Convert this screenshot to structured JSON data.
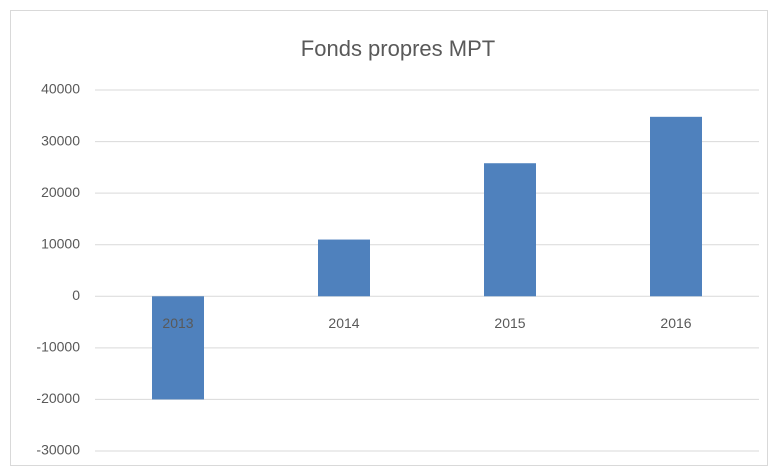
{
  "chart_data": {
    "type": "bar",
    "title": "Fonds propres MPT",
    "categories": [
      "2013",
      "2014",
      "2015",
      "2016"
    ],
    "values": [
      -20000,
      11000,
      25800,
      34800
    ],
    "color": "#4f81bd",
    "ylim": [
      -30000,
      40000
    ],
    "yticks": [
      -30000,
      -20000,
      -10000,
      0,
      10000,
      20000,
      30000,
      40000
    ],
    "grid": true
  }
}
